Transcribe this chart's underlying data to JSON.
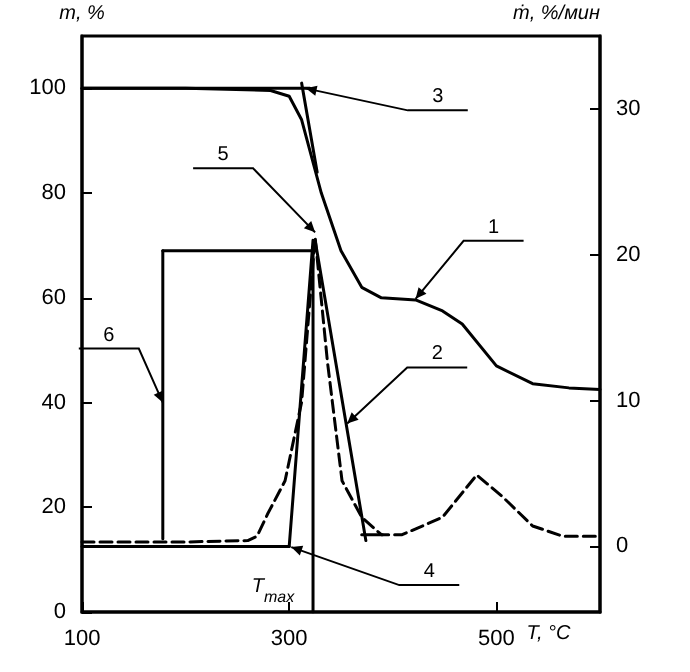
{
  "chart_data": {
    "type": "line",
    "xlabel": "T, °C",
    "ylabel": "m, %",
    "y2label": "ṁ, %/мин",
    "xlim": [
      100,
      600
    ],
    "xticks": [
      100,
      300,
      500
    ],
    "ylim": [
      0,
      110
    ],
    "yticks": [
      0,
      20,
      40,
      60,
      80,
      100
    ],
    "y2lim": [
      -4.5,
      35
    ],
    "y2ticks": [
      0,
      10,
      20,
      30
    ],
    "grid": false,
    "series": [
      {
        "color": "#000000",
        "line_style": "solid",
        "x": [
          100,
          200,
          282,
          300,
          312,
          331,
          350,
          370,
          389,
          422,
          448,
          467,
          500,
          535,
          570,
          600
        ],
        "values": [
          100,
          100,
          99.6,
          98.5,
          94,
          80,
          69,
          62,
          60,
          59.6,
          57.5,
          55,
          47,
          43.6,
          42.8,
          42.5
        ]
      },
      {
        "color": "#000000",
        "line_style": "dashed",
        "axis": "y2",
        "x": [
          100,
          200,
          260,
          269,
          279,
          296,
          312,
          325,
          337,
          351,
          370,
          389,
          409,
          448,
          481,
          506,
          535,
          564,
          600
        ],
        "values": [
          0.3,
          0.3,
          0.4,
          0.7,
          2.2,
          4.5,
          9.9,
          21.2,
          12.6,
          4.5,
          2.0,
          0.8,
          0.8,
          2.0,
          4.9,
          3.4,
          1.4,
          0.7,
          0.7
        ]
      },
      {
        "color": "#000000",
        "line_style": "solid",
        "x": [
          100,
          320
        ],
        "values": [
          100,
          100
        ]
      },
      {
        "color": "#000000",
        "line_style": "solid",
        "x": [
          312,
          327
        ],
        "values": [
          101,
          84
        ]
      },
      {
        "color": "#000000",
        "line_style": "solid",
        "axis": "y2",
        "x": [
          100,
          300
        ],
        "values": [
          0,
          0
        ]
      },
      {
        "color": "#000000",
        "line_style": "solid",
        "axis": "y2",
        "x": [
          300,
          323
        ],
        "values": [
          0,
          21
        ]
      },
      {
        "color": "#000000",
        "line_style": "solid",
        "axis": "y2",
        "x": [
          325,
          374
        ],
        "values": [
          21,
          0.4
        ]
      },
      {
        "color": "#000000",
        "line_style": "solid",
        "axis": "y2",
        "x": [
          370,
          390
        ],
        "values": [
          0.8,
          0.8
        ]
      },
      {
        "color": "#000000",
        "line_style": "solid",
        "x": [
          178,
          323
        ],
        "values": [
          69,
          69
        ]
      },
      {
        "color": "#000000",
        "line_style": "solid",
        "x": [
          178,
          178
        ],
        "values": [
          69,
          14
        ]
      },
      {
        "color": "#000000",
        "line_style": "solid",
        "x": [
          323,
          323
        ],
        "values": [
          69,
          0
        ]
      }
    ],
    "annotations": [
      {
        "text": "1",
        "x": 422,
        "y": 59.8
      },
      {
        "text": "2",
        "x": 356,
        "y": 36
      },
      {
        "text": "3",
        "x": 316,
        "y": 100
      },
      {
        "text": "4",
        "x": 302,
        "y": 12.4
      },
      {
        "text": "5",
        "x": 325,
        "y": 72.5
      },
      {
        "text": "6",
        "x": 178,
        "y": 40
      },
      {
        "text": "T$_{max}$",
        "x": 323,
        "y": 0
      }
    ]
  }
}
